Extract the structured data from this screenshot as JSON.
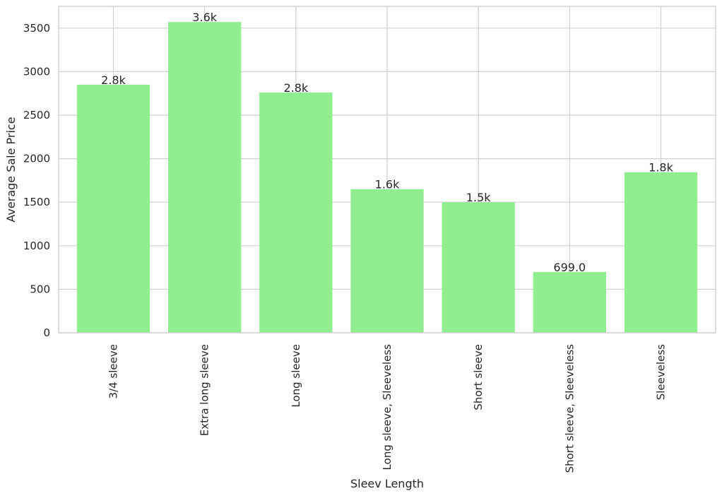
{
  "chart_data": {
    "type": "bar",
    "title": "",
    "xlabel": "Sleev Length",
    "ylabel": "Average Sale Price",
    "categories": [
      "3/4 sleeve",
      "Extra long sleeve",
      "Long sleeve",
      "Long sleeve, Sleeveless",
      "Short sleeve",
      "Short sleeve, Sleeveless",
      "Sleeveless"
    ],
    "values": [
      2850,
      3570,
      2760,
      1650,
      1500,
      699,
      1845
    ],
    "value_labels": [
      "2.8k",
      "3.6k",
      "2.8k",
      "1.6k",
      "1.5k",
      "699.0",
      "1.8k"
    ],
    "yticks": [
      0,
      500,
      1000,
      1500,
      2000,
      2500,
      3000,
      3500
    ],
    "ylim": [
      0,
      3750
    ],
    "grid": true,
    "bar_color": "#90ee90",
    "grid_color": "#cfcfcf"
  }
}
